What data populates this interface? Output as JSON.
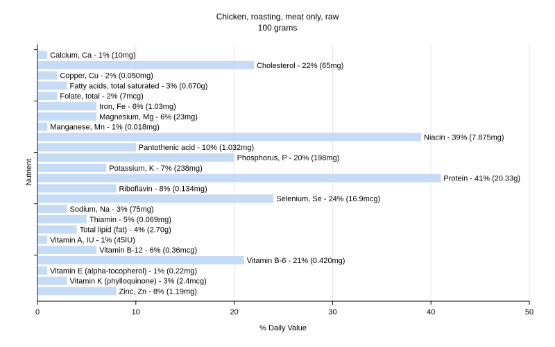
{
  "chart_data": {
    "type": "bar",
    "orientation": "horizontal",
    "title": "Chicken, roasting, meat only, raw",
    "subtitle": "100 grams",
    "xlabel": "% Daily Value",
    "ylabel": "Nutrient",
    "xlim": [
      0,
      50
    ],
    "xticks": [
      "0",
      "10",
      "20",
      "30",
      "40",
      "50"
    ],
    "grid": "vertical",
    "bar_color": "#c6dcf5",
    "categories": [
      "Calcium, Ca - 1% (10mg)",
      "Cholesterol - 22% (65mg)",
      "Copper, Cu - 2% (0.050mg)",
      "Fatty acids, total saturated - 3% (0.670g)",
      "Folate, total - 2% (7mcg)",
      "Iron, Fe - 6% (1.03mg)",
      "Magnesium, Mg - 6% (23mg)",
      "Manganese, Mn - 1% (0.018mg)",
      "Niacin - 39% (7.875mg)",
      "Pantothenic acid - 10% (1.032mg)",
      "Phosphorus, P - 20% (198mg)",
      "Potassium, K - 7% (238mg)",
      "Protein - 41% (20.33g)",
      "Riboflavin - 8% (0.134mg)",
      "Selenium, Se - 24% (16.9mcg)",
      "Sodium, Na - 3% (75mg)",
      "Thiamin - 5% (0.069mg)",
      "Total lipid (fat) - 4% (2.70g)",
      "Vitamin A, IU - 1% (45IU)",
      "Vitamin B-12 - 6% (0.36mcg)",
      "Vitamin B-6 - 21% (0.420mg)",
      "Vitamin E (alpha-tocopherol) - 1% (0.22mg)",
      "Vitamin K (phylloquinone) - 3% (2.4mcg)",
      "Zinc, Zn - 8% (1.19mg)"
    ],
    "values": [
      1,
      22,
      2,
      3,
      2,
      6,
      6,
      1,
      39,
      10,
      20,
      7,
      41,
      8,
      24,
      3,
      5,
      4,
      1,
      6,
      21,
      1,
      3,
      8
    ]
  }
}
